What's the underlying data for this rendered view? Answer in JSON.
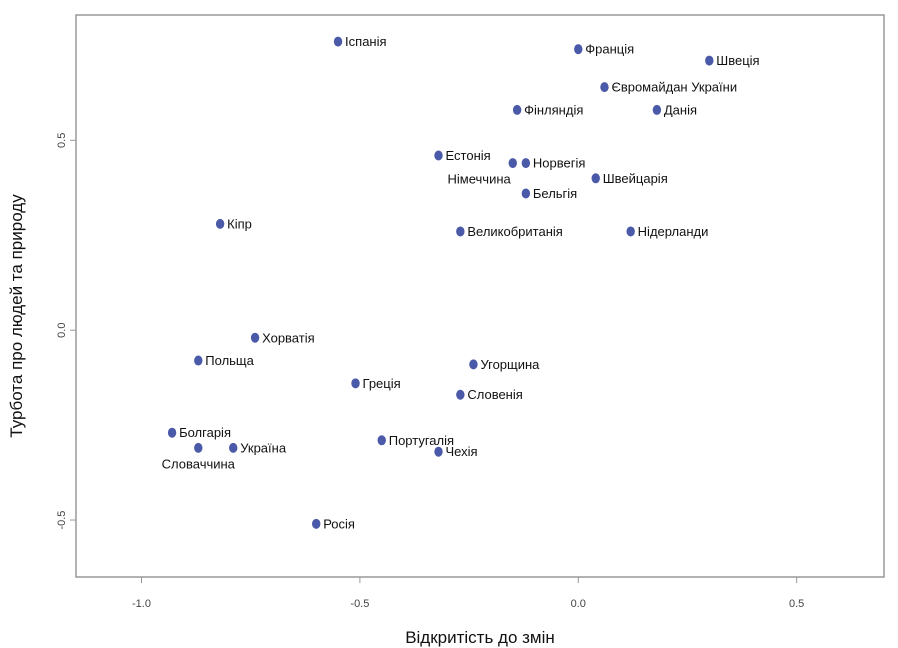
{
  "chart_data": {
    "type": "scatter",
    "xlabel": "Відкритість до змін",
    "ylabel": "Турбота про людей та природу",
    "xlim": [
      -1.15,
      0.7
    ],
    "ylim": [
      -0.65,
      0.83
    ],
    "x_ticks": [
      {
        "value": -1.0,
        "label": "-1.0"
      },
      {
        "value": -0.5,
        "label": "-0.5"
      },
      {
        "value": 0.0,
        "label": "0.0"
      },
      {
        "value": 0.5,
        "label": "0.5"
      }
    ],
    "y_ticks": [
      {
        "value": 0.5,
        "label": "0.5"
      },
      {
        "value": 0.0,
        "label": "0.0"
      },
      {
        "value": -0.5,
        "label": "-0.5"
      }
    ],
    "grid": false,
    "colors": {
      "marker": "#4b5aa8",
      "label": "#111111",
      "highlight": "#e07b39",
      "frame": "#999999"
    },
    "points": [
      {
        "label": "Іспанія",
        "x": -0.55,
        "y": 0.76,
        "highlight": false,
        "label_pos": "right"
      },
      {
        "label": "Франція",
        "x": 0.0,
        "y": 0.74,
        "highlight": false,
        "label_pos": "right"
      },
      {
        "label": "Швеція",
        "x": 0.3,
        "y": 0.71,
        "highlight": false,
        "label_pos": "right"
      },
      {
        "label": "Євромайдан України",
        "x": 0.06,
        "y": 0.64,
        "highlight": true,
        "label_pos": "right"
      },
      {
        "label": "Фінляндія",
        "x": -0.14,
        "y": 0.58,
        "highlight": false,
        "label_pos": "right"
      },
      {
        "label": "Данія",
        "x": 0.18,
        "y": 0.58,
        "highlight": false,
        "label_pos": "right"
      },
      {
        "label": "Естонія",
        "x": -0.32,
        "y": 0.46,
        "highlight": false,
        "label_pos": "right"
      },
      {
        "label": "Норвегія",
        "x": -0.12,
        "y": 0.44,
        "highlight": false,
        "label_pos": "right"
      },
      {
        "label": "Німеччина",
        "x": -0.15,
        "y": 0.44,
        "highlight": false,
        "label_pos": "below-left"
      },
      {
        "label": "Швейцарія",
        "x": 0.04,
        "y": 0.4,
        "highlight": false,
        "label_pos": "right"
      },
      {
        "label": "Бельгія",
        "x": -0.12,
        "y": 0.36,
        "highlight": false,
        "label_pos": "right"
      },
      {
        "label": "Кіпр",
        "x": -0.82,
        "y": 0.28,
        "highlight": false,
        "label_pos": "right"
      },
      {
        "label": "Великобританія",
        "x": -0.27,
        "y": 0.26,
        "highlight": false,
        "label_pos": "right"
      },
      {
        "label": "Нідерланди",
        "x": 0.12,
        "y": 0.26,
        "highlight": false,
        "label_pos": "right"
      },
      {
        "label": "Хорватія",
        "x": -0.74,
        "y": -0.02,
        "highlight": false,
        "label_pos": "right"
      },
      {
        "label": "Польща",
        "x": -0.87,
        "y": -0.08,
        "highlight": false,
        "label_pos": "right"
      },
      {
        "label": "Угорщина",
        "x": -0.24,
        "y": -0.09,
        "highlight": false,
        "label_pos": "right"
      },
      {
        "label": "Греція",
        "x": -0.51,
        "y": -0.14,
        "highlight": false,
        "label_pos": "right"
      },
      {
        "label": "Словенія",
        "x": -0.27,
        "y": -0.17,
        "highlight": false,
        "label_pos": "right"
      },
      {
        "label": "Болгарія",
        "x": -0.93,
        "y": -0.27,
        "highlight": false,
        "label_pos": "right"
      },
      {
        "label": "Словаччина",
        "x": -0.87,
        "y": -0.31,
        "highlight": false,
        "label_pos": "below"
      },
      {
        "label": "Україна",
        "x": -0.79,
        "y": -0.31,
        "highlight": true,
        "label_pos": "right"
      },
      {
        "label": "Португалія",
        "x": -0.45,
        "y": -0.29,
        "highlight": false,
        "label_pos": "right"
      },
      {
        "label": "Чехія",
        "x": -0.32,
        "y": -0.32,
        "highlight": false,
        "label_pos": "right"
      },
      {
        "label": "Росія",
        "x": -0.6,
        "y": -0.51,
        "highlight": false,
        "label_pos": "right"
      }
    ]
  }
}
